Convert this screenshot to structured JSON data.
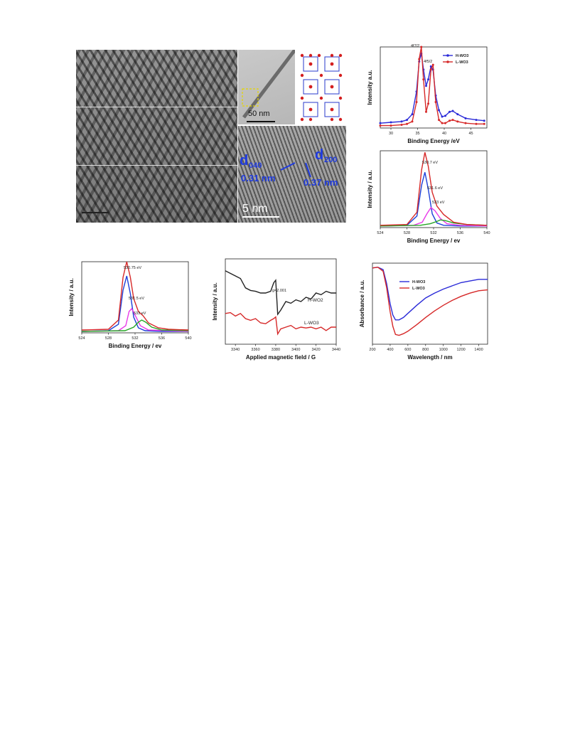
{
  "tem": {
    "big_scale": "",
    "mid_scale": "50 nm",
    "low_scale": "5 nm",
    "d_left_label": "d",
    "d_left_sub": "040",
    "d_right_label": "d",
    "d_right_sub": "200",
    "spacing_left": "0.31 nm",
    "spacing_right": "0.37 nm"
  },
  "chart_data": [
    {
      "id": "w4f",
      "type": "line",
      "xlabel": "Binding Energy /eV",
      "ylabel": "Intensity a.u.",
      "xlim": [
        28,
        48
      ],
      "ylim": [
        0,
        1
      ],
      "xticks": [
        "30",
        "35",
        "40",
        "45"
      ],
      "annotations": [
        "4f7/2",
        "4f5/2"
      ],
      "legend": "top-right",
      "series": [
        {
          "name": "H-WO3",
          "color": "#2b2bd8",
          "x": [
            28,
            30,
            32,
            33,
            34,
            34.8,
            35.3,
            35.7,
            36.1,
            36.6,
            37,
            37.5,
            37.9,
            38.4,
            39,
            39.6,
            40.2,
            41,
            41.6,
            42.5,
            44,
            46,
            47.5
          ],
          "y": [
            0.06,
            0.07,
            0.08,
            0.1,
            0.17,
            0.45,
            0.82,
            0.92,
            0.72,
            0.52,
            0.6,
            0.76,
            0.72,
            0.4,
            0.22,
            0.14,
            0.15,
            0.2,
            0.21,
            0.17,
            0.12,
            0.1,
            0.09
          ]
        },
        {
          "name": "L-WO3",
          "color": "#d62828",
          "x": [
            28,
            30,
            32,
            33,
            34,
            34.8,
            35.3,
            35.7,
            36.1,
            36.6,
            37,
            37.5,
            37.9,
            38.4,
            39,
            39.6,
            40.2,
            41,
            41.6,
            42.5,
            44,
            46,
            47.5
          ],
          "y": [
            0.03,
            0.03,
            0.04,
            0.05,
            0.08,
            0.32,
            0.85,
            1.0,
            0.6,
            0.2,
            0.3,
            0.72,
            0.78,
            0.32,
            0.1,
            0.06,
            0.06,
            0.09,
            0.1,
            0.08,
            0.06,
            0.05,
            0.05
          ]
        }
      ]
    },
    {
      "id": "o1s-top",
      "type": "line",
      "xlabel": "Binding Energy / ev",
      "ylabel": "Intensity / a.u.",
      "xlim": [
        524,
        540
      ],
      "ylim": [
        0,
        1
      ],
      "xticks": [
        "524",
        "528",
        "532",
        "536",
        "540"
      ],
      "annotations": [
        "530.7 eV",
        "531.6 eV",
        "533 eV"
      ],
      "series": [
        {
          "name": "",
          "color": "#1e40d8",
          "x": [
            524,
            528,
            529.5,
            530.2,
            530.7,
            531.2,
            531.8,
            532.5,
            533.5,
            536,
            540
          ],
          "y": [
            0.02,
            0.03,
            0.15,
            0.55,
            0.72,
            0.5,
            0.18,
            0.06,
            0.03,
            0.02,
            0.02
          ]
        },
        {
          "name": "",
          "color": "#e83ae8",
          "x": [
            524,
            529,
            530.3,
            531,
            531.6,
            532.2,
            533,
            534,
            536,
            540
          ],
          "y": [
            0.02,
            0.03,
            0.07,
            0.18,
            0.26,
            0.22,
            0.12,
            0.05,
            0.03,
            0.02
          ]
        },
        {
          "name": "",
          "color": "#26a626",
          "x": [
            524,
            530,
            531.5,
            532.5,
            533,
            533.8,
            535,
            537,
            540
          ],
          "y": [
            0.02,
            0.03,
            0.05,
            0.08,
            0.1,
            0.09,
            0.06,
            0.04,
            0.03
          ]
        },
        {
          "name": "",
          "color": "#d62828",
          "x": [
            524,
            528,
            529.5,
            530.2,
            530.7,
            531.2,
            531.8,
            532.5,
            533.5,
            535,
            537,
            540
          ],
          "y": [
            0.03,
            0.04,
            0.2,
            0.75,
            0.98,
            0.8,
            0.46,
            0.28,
            0.17,
            0.07,
            0.04,
            0.03
          ]
        }
      ]
    },
    {
      "id": "o1s-bottom",
      "type": "line",
      "xlabel": "Binding Energy / ev",
      "ylabel": "Intensity / a.u.",
      "xlim": [
        524,
        540
      ],
      "ylim": [
        0,
        1
      ],
      "xticks": [
        "524",
        "528",
        "532",
        "536",
        "540"
      ],
      "annotations": [
        "530.75 eV",
        "531.5 eV",
        "533 eV"
      ],
      "series": [
        {
          "name": "",
          "color": "#1e40d8",
          "x": [
            524,
            528,
            529.5,
            530.2,
            530.75,
            531.3,
            531.8,
            532.5,
            533.5,
            536,
            540
          ],
          "y": [
            0.02,
            0.03,
            0.12,
            0.6,
            0.8,
            0.55,
            0.22,
            0.07,
            0.03,
            0.02,
            0.02
          ]
        },
        {
          "name": "",
          "color": "#e83ae8",
          "x": [
            524,
            529.5,
            530.6,
            531.1,
            531.5,
            532,
            532.8,
            534,
            540
          ],
          "y": [
            0.02,
            0.03,
            0.1,
            0.3,
            0.34,
            0.25,
            0.1,
            0.04,
            0.02
          ]
        },
        {
          "name": "",
          "color": "#26a626",
          "x": [
            524,
            530.5,
            531.8,
            532.5,
            533,
            533.6,
            534.5,
            536,
            540
          ],
          "y": [
            0.02,
            0.03,
            0.08,
            0.15,
            0.18,
            0.15,
            0.08,
            0.04,
            0.03
          ]
        },
        {
          "name": "",
          "color": "#d62828",
          "x": [
            524,
            528,
            529.5,
            530.2,
            530.75,
            531.3,
            531.8,
            532.5,
            533.2,
            534,
            535.5,
            537,
            540
          ],
          "y": [
            0.04,
            0.05,
            0.18,
            0.78,
            1.0,
            0.78,
            0.48,
            0.3,
            0.24,
            0.14,
            0.07,
            0.05,
            0.04
          ]
        }
      ]
    },
    {
      "id": "epr",
      "type": "line",
      "xlabel": "Applied magnetic field / G",
      "ylabel": "Intensity / a.u.",
      "xlim": [
        3330,
        3440
      ],
      "ylim": [
        0,
        1
      ],
      "xticks": [
        "3340",
        "3360",
        "3380",
        "3400",
        "3420",
        "3440"
      ],
      "annotations": [
        "g=2.001"
      ],
      "series": [
        {
          "name": "H-WO2",
          "color": "#222222",
          "x": [
            3330,
            3335,
            3340,
            3345,
            3350,
            3355,
            3360,
            3365,
            3370,
            3375,
            3378,
            3380,
            3382,
            3385,
            3390,
            3395,
            3400,
            3405,
            3410,
            3415,
            3420,
            3425,
            3430,
            3435,
            3440
          ],
          "y": [
            0.86,
            0.83,
            0.8,
            0.77,
            0.66,
            0.63,
            0.62,
            0.6,
            0.6,
            0.62,
            0.72,
            0.75,
            0.35,
            0.4,
            0.5,
            0.48,
            0.52,
            0.5,
            0.55,
            0.53,
            0.6,
            0.58,
            0.62,
            0.6,
            0.6
          ]
        },
        {
          "name": "L-WO3",
          "color": "#d62828",
          "x": [
            3330,
            3335,
            3340,
            3345,
            3350,
            3355,
            3360,
            3365,
            3370,
            3375,
            3378,
            3380,
            3382,
            3385,
            3390,
            3395,
            3400,
            3405,
            3410,
            3415,
            3420,
            3425,
            3430,
            3435,
            3440
          ],
          "y": [
            0.36,
            0.37,
            0.33,
            0.36,
            0.3,
            0.28,
            0.3,
            0.25,
            0.24,
            0.28,
            0.3,
            0.32,
            0.12,
            0.18,
            0.2,
            0.22,
            0.18,
            0.2,
            0.19,
            0.2,
            0.18,
            0.2,
            0.16,
            0.2,
            0.2
          ]
        }
      ]
    },
    {
      "id": "abs",
      "type": "line",
      "xlabel": "Wavelength / nm",
      "ylabel": "Absorbance / a.u.",
      "xlim": [
        200,
        1500
      ],
      "ylim": [
        0,
        1
      ],
      "xticks": [
        "200",
        "400",
        "600",
        "800",
        "1000",
        "1200",
        "1400"
      ],
      "legend": "top-left",
      "series": [
        {
          "name": "H-WO3",
          "color": "#2b2bd8",
          "x": [
            200,
            260,
            320,
            360,
            400,
            430,
            460,
            500,
            550,
            600,
            700,
            800,
            900,
            1000,
            1100,
            1200,
            1300,
            1400,
            1500
          ],
          "y": [
            0.94,
            0.95,
            0.92,
            0.75,
            0.5,
            0.36,
            0.3,
            0.3,
            0.33,
            0.38,
            0.48,
            0.57,
            0.63,
            0.68,
            0.72,
            0.76,
            0.78,
            0.8,
            0.8
          ]
        },
        {
          "name": "L-WO3",
          "color": "#d62828",
          "x": [
            200,
            260,
            320,
            360,
            400,
            430,
            460,
            500,
            550,
            600,
            700,
            800,
            900,
            1000,
            1100,
            1200,
            1300,
            1400,
            1500
          ],
          "y": [
            0.94,
            0.95,
            0.9,
            0.7,
            0.4,
            0.22,
            0.12,
            0.11,
            0.13,
            0.16,
            0.24,
            0.33,
            0.41,
            0.48,
            0.54,
            0.59,
            0.63,
            0.66,
            0.67
          ]
        }
      ]
    }
  ]
}
